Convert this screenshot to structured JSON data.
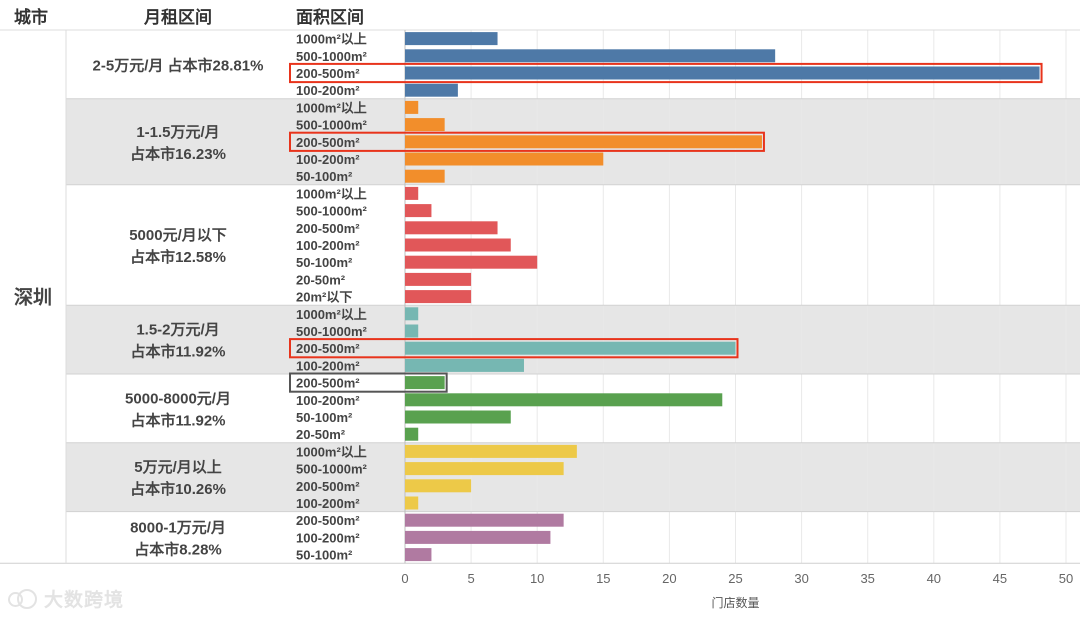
{
  "chart_data": {
    "type": "bar",
    "orientation": "horizontal",
    "headers": {
      "city": "城市",
      "rent": "月租区间",
      "area": "面积区间"
    },
    "city": "深圳",
    "xlabel": "门店数量",
    "xlim": [
      0,
      50
    ],
    "xticks": [
      0,
      5,
      10,
      15,
      20,
      25,
      30,
      35,
      40,
      45,
      50
    ],
    "groups": [
      {
        "name": "2-5万元/月 占本市28.81%",
        "label_lines": [
          "2-5万元/月  占本市28.81%"
        ],
        "color": "#4e79a7",
        "shaded": false,
        "bars": [
          {
            "category": "1000m²以上",
            "value": 7
          },
          {
            "category": "500-1000m²",
            "value": 28
          },
          {
            "category": "200-500m²",
            "value": 48,
            "highlight": "red"
          },
          {
            "category": "100-200m²",
            "value": 4
          }
        ]
      },
      {
        "name": "1-1.5万元/月 占本市16.23%",
        "label_lines": [
          "1-1.5万元/月",
          "占本市16.23%"
        ],
        "color": "#f28e2b",
        "shaded": true,
        "bars": [
          {
            "category": "1000m²以上",
            "value": 1
          },
          {
            "category": "500-1000m²",
            "value": 3
          },
          {
            "category": "200-500m²",
            "value": 27,
            "highlight": "red"
          },
          {
            "category": "100-200m²",
            "value": 15
          },
          {
            "category": "50-100m²",
            "value": 3
          }
        ]
      },
      {
        "name": "5000元/月以下 占本市12.58%",
        "label_lines": [
          "5000元/月以下",
          "占本市12.58%"
        ],
        "color": "#e15759",
        "shaded": false,
        "bars": [
          {
            "category": "1000m²以上",
            "value": 1
          },
          {
            "category": "500-1000m²",
            "value": 2
          },
          {
            "category": "200-500m²",
            "value": 7
          },
          {
            "category": "100-200m²",
            "value": 8
          },
          {
            "category": "50-100m²",
            "value": 10
          },
          {
            "category": "20-50m²",
            "value": 5
          },
          {
            "category": "20m²以下",
            "value": 5
          }
        ]
      },
      {
        "name": "1.5-2万元/月 占本市11.92%",
        "label_lines": [
          "1.5-2万元/月",
          "占本市11.92%"
        ],
        "color": "#76b7b2",
        "shaded": true,
        "bars": [
          {
            "category": "1000m²以上",
            "value": 1
          },
          {
            "category": "500-1000m²",
            "value": 1
          },
          {
            "category": "200-500m²",
            "value": 25,
            "highlight": "red"
          },
          {
            "category": "100-200m²",
            "value": 9
          }
        ]
      },
      {
        "name": "5000-8000元/月 占本市11.92%",
        "label_lines": [
          "5000-8000元/月",
          "占本市11.92%"
        ],
        "color": "#59a14f",
        "shaded": false,
        "bars": [
          {
            "category": "200-500m²",
            "value": 3,
            "highlight": "gray"
          },
          {
            "category": "100-200m²",
            "value": 24
          },
          {
            "category": "50-100m²",
            "value": 8
          },
          {
            "category": "20-50m²",
            "value": 1
          }
        ]
      },
      {
        "name": "5万元/月以上 占本市10.26%",
        "label_lines": [
          "5万元/月以上",
          "占本市10.26%"
        ],
        "color": "#edc948",
        "shaded": true,
        "bars": [
          {
            "category": "1000m²以上",
            "value": 13
          },
          {
            "category": "500-1000m²",
            "value": 12
          },
          {
            "category": "200-500m²",
            "value": 5
          },
          {
            "category": "100-200m²",
            "value": 1
          }
        ]
      },
      {
        "name": "8000-1万元/月 占本市8.28%",
        "label_lines": [
          "8000-1万元/月",
          "占本市8.28%"
        ],
        "color": "#b07aa1",
        "shaded": false,
        "bars": [
          {
            "category": "200-500m²",
            "value": 12
          },
          {
            "category": "100-200m²",
            "value": 11
          },
          {
            "category": "50-100m²",
            "value": 2
          }
        ]
      }
    ]
  },
  "watermark": "大数跨境",
  "colors": {
    "shade": "#e6e6e6",
    "highlight_red": "#e8341c",
    "highlight_gray": "#555555",
    "text": "#444444",
    "grid": "#e9e9e9"
  }
}
